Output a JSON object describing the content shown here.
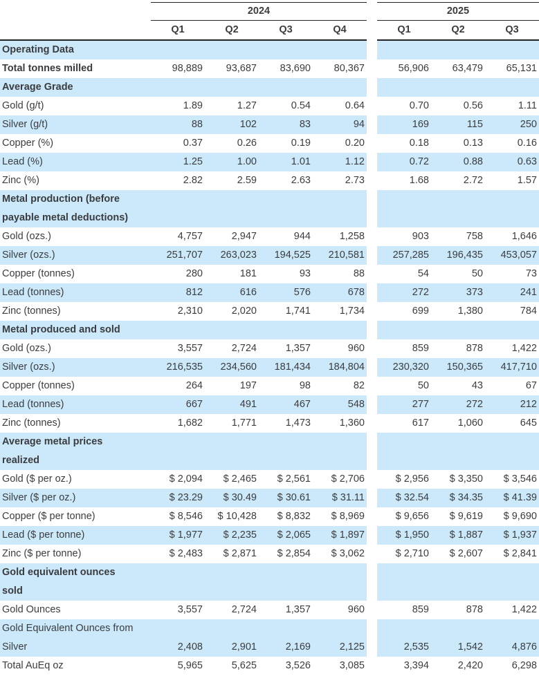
{
  "colors": {
    "stripe": "#cbe9fa",
    "text": "#3b3c3f",
    "line": "#242424",
    "background": "#ffffff"
  },
  "table": {
    "year_groups": [
      {
        "label": "2024",
        "quarters": [
          "Q1",
          "Q2",
          "Q3",
          "Q4"
        ]
      },
      {
        "label": "2025",
        "quarters": [
          "Q1",
          "Q2",
          "Q3"
        ]
      }
    ],
    "rows": [
      {
        "kind": "section",
        "lines": [
          "Operating Data"
        ],
        "shade": "blue"
      },
      {
        "kind": "data",
        "bold": true,
        "lines": [
          "Total tonnes milled"
        ],
        "shade": "white",
        "values": [
          "98,889",
          "93,687",
          "83,690",
          "80,367",
          "56,906",
          "63,479",
          "65,131"
        ]
      },
      {
        "kind": "section",
        "lines": [
          "Average Grade"
        ],
        "shade": "blue"
      },
      {
        "kind": "data",
        "lines": [
          "Gold (g/t)"
        ],
        "shade": "white",
        "values": [
          "1.89",
          "1.27",
          "0.54",
          "0.64",
          "0.70",
          "0.56",
          "1.11"
        ]
      },
      {
        "kind": "data",
        "lines": [
          "Silver (g/t)"
        ],
        "shade": "blue",
        "values": [
          "88",
          "102",
          "83",
          "94",
          "169",
          "115",
          "250"
        ]
      },
      {
        "kind": "data",
        "lines": [
          "Copper (%)"
        ],
        "shade": "white",
        "values": [
          "0.37",
          "0.26",
          "0.19",
          "0.20",
          "0.18",
          "0.13",
          "0.16"
        ]
      },
      {
        "kind": "data",
        "lines": [
          "Lead (%)"
        ],
        "shade": "blue",
        "values": [
          "1.25",
          "1.00",
          "1.01",
          "1.12",
          "0.72",
          "0.88",
          "0.63"
        ]
      },
      {
        "kind": "data",
        "lines": [
          "Zinc (%)"
        ],
        "shade": "white",
        "values": [
          "2.82",
          "2.59",
          "2.63",
          "2.73",
          "1.68",
          "2.72",
          "1.57"
        ]
      },
      {
        "kind": "section",
        "lines": [
          "Metal production (before",
          "payable metal deductions)"
        ],
        "shade": "blue"
      },
      {
        "kind": "data",
        "lines": [
          "Gold (ozs.)"
        ],
        "shade": "white",
        "values": [
          "4,757",
          "2,947",
          "944",
          "1,258",
          "903",
          "758",
          "1,646"
        ]
      },
      {
        "kind": "data",
        "lines": [
          "Silver (ozs.)"
        ],
        "shade": "blue",
        "values": [
          "251,707",
          "263,023",
          "194,525",
          "210,581",
          "257,285",
          "196,435",
          "453,057"
        ]
      },
      {
        "kind": "data",
        "lines": [
          "Copper (tonnes)"
        ],
        "shade": "white",
        "values": [
          "280",
          "181",
          "93",
          "88",
          "54",
          "50",
          "73"
        ]
      },
      {
        "kind": "data",
        "lines": [
          "Lead (tonnes)"
        ],
        "shade": "blue",
        "values": [
          "812",
          "616",
          "576",
          "678",
          "272",
          "373",
          "241"
        ]
      },
      {
        "kind": "data",
        "lines": [
          "Zinc (tonnes)"
        ],
        "shade": "white",
        "values": [
          "2,310",
          "2,020",
          "1,741",
          "1,734",
          "699",
          "1,380",
          "784"
        ]
      },
      {
        "kind": "section",
        "lines": [
          "Metal produced and sold"
        ],
        "shade": "blue"
      },
      {
        "kind": "data",
        "lines": [
          "Gold (ozs.)"
        ],
        "shade": "white",
        "values": [
          "3,557",
          "2,724",
          "1,357",
          "960",
          "859",
          "878",
          "1,422"
        ]
      },
      {
        "kind": "data",
        "lines": [
          "Silver (ozs.)"
        ],
        "shade": "blue",
        "values": [
          "216,535",
          "234,560",
          "181,434",
          "184,804",
          "230,320",
          "150,365",
          "417,710"
        ]
      },
      {
        "kind": "data",
        "lines": [
          "Copper (tonnes)"
        ],
        "shade": "white",
        "values": [
          "264",
          "197",
          "98",
          "82",
          "50",
          "43",
          "67"
        ]
      },
      {
        "kind": "data",
        "lines": [
          "Lead (tonnes)"
        ],
        "shade": "blue",
        "values": [
          "667",
          "491",
          "467",
          "548",
          "277",
          "272",
          "212"
        ]
      },
      {
        "kind": "data",
        "lines": [
          "Zinc (tonnes)"
        ],
        "shade": "white",
        "values": [
          "1,682",
          "1,771",
          "1,473",
          "1,360",
          "617",
          "1,060",
          "645"
        ]
      },
      {
        "kind": "section",
        "lines": [
          "Average metal prices",
          "realized"
        ],
        "shade": "blue"
      },
      {
        "kind": "data",
        "lines": [
          "Gold ($ per oz.)"
        ],
        "shade": "white",
        "values": [
          "$ 2,094",
          "$ 2,465",
          "$ 2,561",
          "$ 2,706",
          "$ 2,956",
          "$ 3,350",
          "$ 3,546"
        ]
      },
      {
        "kind": "data",
        "lines": [
          "Silver ($ per oz.)"
        ],
        "shade": "blue",
        "values": [
          "$ 23.29",
          "$ 30.49",
          "$ 30.61",
          "$ 31.11",
          "$ 32.54",
          "$ 34.35",
          "$ 41.39"
        ]
      },
      {
        "kind": "data",
        "lines": [
          "Copper ($ per tonne)"
        ],
        "shade": "white",
        "values": [
          "$ 8,546",
          "$ 10,428",
          "$ 8,832",
          "$ 8,969",
          "$ 9,656",
          "$ 9,619",
          "$ 9,690"
        ]
      },
      {
        "kind": "data",
        "lines": [
          "Lead ($ per tonne)"
        ],
        "shade": "blue",
        "values": [
          "$ 1,977",
          "$ 2,235",
          "$ 2,065",
          "$ 1,897",
          "$ 1,950",
          "$ 1,887",
          "$ 1,937"
        ]
      },
      {
        "kind": "data",
        "lines": [
          "Zinc ($ per tonne)"
        ],
        "shade": "white",
        "values": [
          "$ 2,483",
          "$ 2,871",
          "$ 2,854",
          "$ 3,062",
          "$ 2,710",
          "$ 2,607",
          "$ 2,841"
        ]
      },
      {
        "kind": "section",
        "lines": [
          "Gold equivalent ounces",
          "sold"
        ],
        "shade": "blue"
      },
      {
        "kind": "data",
        "lines": [
          "Gold Ounces"
        ],
        "shade": "white",
        "values": [
          "3,557",
          "2,724",
          "1,357",
          "960",
          "859",
          "878",
          "1,422"
        ]
      },
      {
        "kind": "data",
        "lines": [
          "Gold Equivalent Ounces from",
          "Silver"
        ],
        "shade": "blue",
        "values": [
          "2,408",
          "2,901",
          "2,169",
          "2,125",
          "2,535",
          "1,542",
          "4,876"
        ]
      },
      {
        "kind": "data",
        "lines": [
          "Total AuEq oz"
        ],
        "shade": "white",
        "values": [
          "5,965",
          "5,625",
          "3,526",
          "3,085",
          "3,394",
          "2,420",
          "6,298"
        ]
      }
    ]
  }
}
